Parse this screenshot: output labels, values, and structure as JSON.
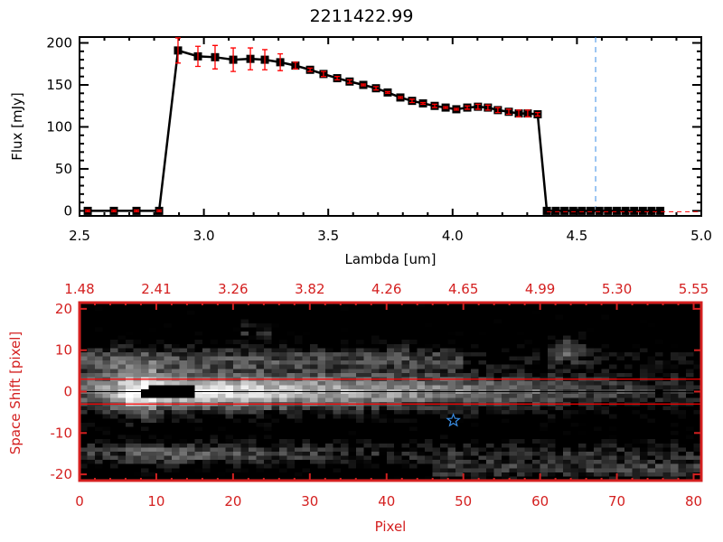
{
  "chart_data": [
    {
      "type": "line",
      "title": "2211422.99",
      "xlabel": "Lambda [um]",
      "ylabel": "Flux [mJy]",
      "xlim": [
        2.5,
        5.0
      ],
      "ylim": [
        -6,
        207
      ],
      "xticks": [
        "2.5",
        "3.0",
        "3.5",
        "4.0",
        "4.5",
        "5.0"
      ],
      "yticks": [
        "0",
        "50",
        "100",
        "150",
        "200"
      ],
      "x": [
        2.533,
        2.638,
        2.729,
        2.82,
        2.896,
        2.976,
        3.045,
        3.118,
        3.187,
        3.245,
        3.307,
        3.368,
        3.427,
        3.481,
        3.536,
        3.586,
        3.641,
        3.692,
        3.739,
        3.79,
        3.837,
        3.881,
        3.928,
        3.972,
        4.015,
        4.059,
        4.102,
        4.142,
        4.182,
        4.226,
        4.266,
        4.302,
        4.342,
        4.379,
        4.415,
        4.45,
        4.485,
        4.52,
        4.555,
        4.59,
        4.625,
        4.66,
        4.695,
        4.73,
        4.765,
        4.8,
        4.835
      ],
      "y": [
        0,
        0,
        0,
        0,
        191,
        184,
        183,
        180,
        181,
        180,
        177,
        173,
        168,
        163,
        158,
        154,
        150,
        146,
        141,
        135,
        131,
        128,
        125,
        123,
        121,
        123,
        124,
        123,
        120,
        118,
        116,
        116,
        115,
        0,
        0,
        0,
        0,
        0,
        0,
        0,
        0,
        0,
        0,
        0,
        0,
        0,
        0
      ],
      "yerr": [
        1,
        1,
        1,
        1,
        15,
        12,
        14,
        14,
        13,
        12,
        10,
        4,
        2,
        3,
        2,
        2,
        1,
        2,
        1,
        1,
        2,
        1,
        2,
        1,
        1,
        2,
        3,
        3,
        3,
        3,
        4,
        4,
        2,
        0,
        0,
        0,
        0,
        0,
        0,
        0,
        0,
        0,
        0,
        0,
        0,
        0,
        0
      ],
      "vline_x": 4.575,
      "colors": {
        "line": "#000000",
        "errorbar": "#ff0000",
        "vline": "#3a8ee6",
        "zero_dash": "#ff0000"
      }
    },
    {
      "type": "heatmap",
      "xlabel": "Pixel",
      "ylabel": "Space Shift [pixel]",
      "xlim": [
        0,
        81
      ],
      "ylim": [
        -21.5,
        21.5
      ],
      "xticks": [
        "0",
        "10",
        "20",
        "30",
        "40",
        "50",
        "60",
        "70",
        "80"
      ],
      "yticks": [
        "20",
        "10",
        "0",
        "-10",
        "-20"
      ],
      "top_tick_labels": [
        "1.48",
        "2.41",
        "3.26",
        "3.82",
        "4.26",
        "4.65",
        "4.99",
        "5.30",
        "5.55"
      ],
      "aperture_lines": [
        3,
        -3
      ],
      "center_line": 0,
      "marker": {
        "symbol": "star",
        "x": 48.7,
        "y": -7,
        "color": "#3a8ee6"
      },
      "colormap": "grayscale",
      "colors": {
        "axes": "#d42020",
        "aperture": "#ff0000",
        "center": "#000000"
      }
    }
  ]
}
